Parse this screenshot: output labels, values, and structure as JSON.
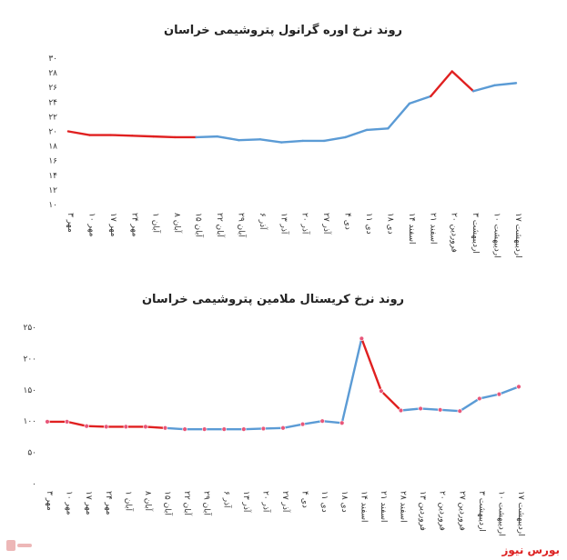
{
  "brand": {
    "name": "بورس نیوز"
  },
  "chart_data": [
    {
      "type": "line",
      "title": "روند نرخ اوره گرانول پتروشیمی خراسان",
      "categories": [
        "۳ مهر",
        "۱۰ مهر",
        "۱۷ مهر",
        "۲۴ مهر",
        "۱ آبان",
        "۸ آبان",
        "۱۵ آبان",
        "۲۲ آبان",
        "۲۹ آبان",
        "۶ آذر",
        "۱۳ آذر",
        "۲۰ آذر",
        "۲۷ آذر",
        "۴ دی",
        "۱۱ دی",
        "۱۸ دی",
        "۱۴ اسفند",
        "۲۱ اسفند",
        "۲۰ فروردین",
        "۳ اردیبهشت",
        "۱۰ اردیبهشت",
        "۱۷ اردیبهشت"
      ],
      "ylim": [
        10,
        30
      ],
      "yticks": [
        "۱۰",
        "۱۲",
        "۱۴",
        "۱۶",
        "۱۸",
        "۲۰",
        "۲۲",
        "۲۴",
        "۲۶",
        "۲۸",
        "۳۰"
      ],
      "values": [
        20.0,
        19.5,
        19.5,
        19.4,
        19.3,
        19.2,
        19.2,
        19.3,
        18.8,
        18.9,
        18.5,
        18.7,
        18.7,
        19.2,
        20.2,
        20.4,
        23.8,
        24.8,
        28.2,
        25.5,
        26.3,
        26.6
      ],
      "segment_colors": [
        "#e02020",
        "#e02020",
        "#e02020",
        "#e02020",
        "#e02020",
        "#e02020",
        "#5b9bd5",
        "#5b9bd5",
        "#5b9bd5",
        "#5b9bd5",
        "#5b9bd5",
        "#5b9bd5",
        "#5b9bd5",
        "#5b9bd5",
        "#5b9bd5",
        "#5b9bd5",
        "#5b9bd5",
        "#e02020",
        "#e02020",
        "#5b9bd5",
        "#5b9bd5"
      ],
      "markers": false,
      "grid": false
    },
    {
      "type": "line",
      "title": "روند نرخ کریستال ملامین پتروشیمی خراسان",
      "categories": [
        "۳ مهر",
        "۱۰ مهر",
        "۱۷ مهر",
        "۲۴ مهر",
        "۱ آبان",
        "۸ آبان",
        "۱۵ آبان",
        "۲۲ آبان",
        "۲۹ آبان",
        "۶ آذر",
        "۱۳ آذر",
        "۲۰ آذر",
        "۲۷ آذر",
        "۴ دی",
        "۱۱ دی",
        "۱۸ دی",
        "۱۴ اسفند",
        "۲۱ اسفند",
        "۲۸ اسفند",
        "۱۳ فروردین",
        "۲۰ فروردین",
        "۲۷ فروردین",
        "۳ اردیبهشت",
        "۱۰ اردیبهشت",
        "۱۷ اردیبهشت"
      ],
      "ylim": [
        0,
        250
      ],
      "yticks": [
        "۰",
        "۵۰",
        "۱۰۰",
        "۱۵۰",
        "۲۰۰",
        "۲۵۰"
      ],
      "values": [
        99,
        99,
        92,
        91,
        91,
        91,
        89,
        87,
        87,
        87,
        87,
        88,
        89,
        95,
        100,
        97,
        232,
        148,
        117,
        120,
        118,
        116,
        136,
        143,
        155
      ],
      "segment_colors": [
        "#e02020",
        "#e02020",
        "#e02020",
        "#e02020",
        "#e02020",
        "#e02020",
        "#5b9bd5",
        "#5b9bd5",
        "#5b9bd5",
        "#5b9bd5",
        "#5b9bd5",
        "#5b9bd5",
        "#5b9bd5",
        "#5b9bd5",
        "#5b9bd5",
        "#5b9bd5",
        "#e02020",
        "#e02020",
        "#5b9bd5",
        "#5b9bd5",
        "#5b9bd5",
        "#5b9bd5",
        "#5b9bd5",
        "#5b9bd5"
      ],
      "markers": true,
      "marker_color": "#e8577a",
      "grid": false
    }
  ]
}
